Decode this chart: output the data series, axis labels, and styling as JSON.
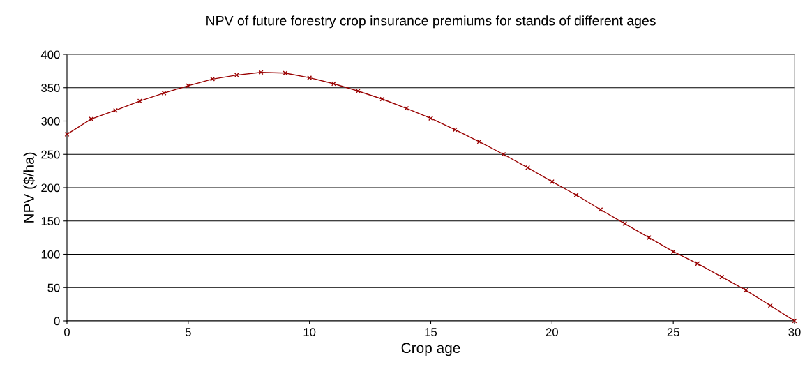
{
  "chart_data": {
    "type": "line",
    "title": "NPV of future forestry crop insurance premiums for stands of different ages",
    "xlabel": "Crop age",
    "ylabel": "NPV ($/ha)",
    "x": [
      0,
      1,
      2,
      3,
      4,
      5,
      6,
      7,
      8,
      9,
      10,
      11,
      12,
      13,
      14,
      15,
      16,
      17,
      18,
      19,
      20,
      21,
      22,
      23,
      24,
      25,
      26,
      27,
      28,
      29,
      30
    ],
    "series": [
      {
        "color": "#990000",
        "values": [
          280,
          303,
          316,
          330,
          342,
          353,
          363,
          369,
          373,
          372,
          365,
          356,
          345,
          333,
          319,
          304,
          287,
          269,
          250,
          230,
          209,
          189,
          167,
          146,
          125,
          104,
          86,
          66,
          46,
          23,
          0
        ]
      }
    ],
    "xlim": [
      0,
      30
    ],
    "xticks": [
      0,
      5,
      10,
      15,
      20,
      25,
      30
    ],
    "ylim": [
      0,
      400
    ],
    "yticks": [
      0,
      50,
      100,
      150,
      200,
      250,
      300,
      350,
      400
    ],
    "grid": "y",
    "legend": false,
    "marker": "cross",
    "line_style": "solid"
  }
}
